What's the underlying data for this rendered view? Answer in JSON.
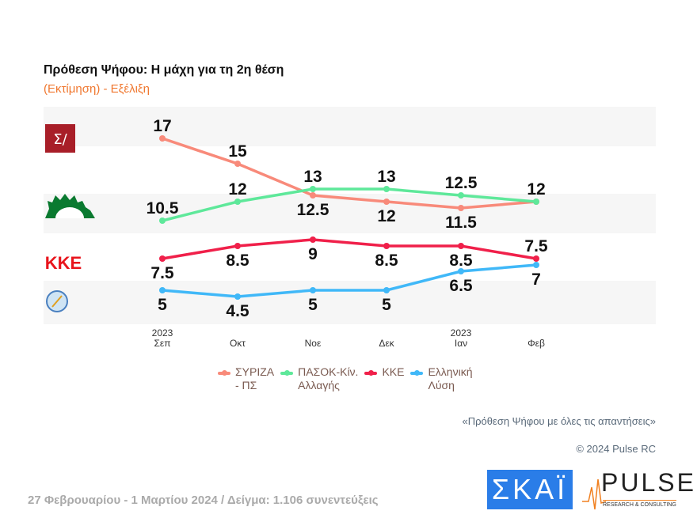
{
  "title": "Πρόθεση Ψήφου: Η μάχη για τη 2η θέση",
  "subtitle": "(Εκτίμηση) - Εξέλιξη",
  "chart_data": {
    "type": "line",
    "categories": [
      [
        "2023",
        "Σεπ"
      ],
      [
        "",
        "Οκτ"
      ],
      [
        "",
        "Νοε"
      ],
      [
        "",
        "Δεκ"
      ],
      [
        "2023",
        "Ιαν"
      ],
      [
        "",
        "Φεβ"
      ]
    ],
    "series": [
      {
        "name": "ΣΥΡΙΖΑ - ΠΣ",
        "color": "#f88a7a",
        "values": [
          17,
          15,
          12.5,
          12,
          11.5,
          12
        ]
      },
      {
        "name": "ΠΑΣΟΚ-Κίν. Αλλαγής",
        "color": "#5ee89a",
        "values": [
          10.5,
          12,
          13,
          13,
          12.5,
          12
        ]
      },
      {
        "name": "ΚΚΕ",
        "color": "#f0204a",
        "values": [
          7.5,
          8.5,
          9,
          8.5,
          8.5,
          7.5
        ]
      },
      {
        "name": "Ελληνική Λύση",
        "color": "#40b8f8",
        "values": [
          5,
          4.5,
          5,
          5,
          6.5,
          7
        ]
      }
    ],
    "grid": false,
    "legend": "bottom"
  },
  "legend": [
    {
      "l1": "ΣΥΡΙΖΑ",
      "l2": "- ΠΣ"
    },
    {
      "l1": "ΠΑΣΟΚ-Κίν.",
      "l2": "Αλλαγής"
    },
    {
      "l1": "ΚΚΕ",
      "l2": ""
    },
    {
      "l1": "Ελληνική",
      "l2": "Λύση"
    }
  ],
  "logos": {
    "syriza": "Σ/",
    "kke": "ΚΚΕ"
  },
  "note": "«Πρόθεση Ψήφου με όλες τις απαντήσεις»",
  "copyright": "© 2024 Pulse RC",
  "footer": "27 Φεβρουαρίου - 1 Μαρτίου 2024  /  Δείγμα:  1.106 συνεντεύξεις",
  "brand": {
    "skai": "ΣΚΑΪ",
    "pulse": "PULSE",
    "pulse_sub": "RESEARCH & CONSULTING"
  }
}
